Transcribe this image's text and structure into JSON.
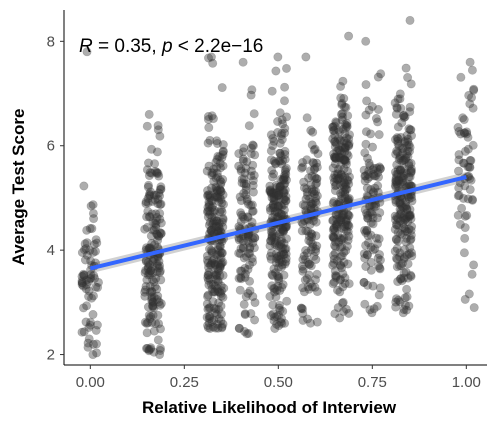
{
  "chart_data": {
    "type": "scatter",
    "title": "",
    "xlabel": "Relative Likelihood of Interview",
    "ylabel": "Average Test Score",
    "xlim": [
      -0.07,
      1.055
    ],
    "ylim": [
      1.8,
      8.6
    ],
    "x_ticks": [
      0.0,
      0.25,
      0.5,
      0.75,
      1.0
    ],
    "x_tick_labels": [
      "0.00",
      "0.25",
      "0.50",
      "0.75",
      "1.00"
    ],
    "y_ticks": [
      2,
      4,
      6,
      8
    ],
    "y_tick_labels": [
      "2",
      "4",
      "6",
      "8"
    ],
    "grid": false,
    "legend": "none",
    "annotation": {
      "R": "R",
      "r_value": " = 0.35, ",
      "p": "p",
      "p_value": " < 2.2e−16"
    },
    "point_color": "#333333",
    "point_opacity": 0.4,
    "regression": {
      "color": "#3366FF",
      "ribbon_color": "#999999",
      "x": [
        0.0,
        1.0
      ],
      "y": [
        3.65,
        5.4
      ]
    },
    "columns": [
      {
        "x": 0.0,
        "n": 70,
        "y_min": 2.0,
        "y_max": 7.8,
        "y_center": 3.7,
        "y_spread": 1.05
      },
      {
        "x": 0.167,
        "n": 170,
        "y_min": 2.0,
        "y_max": 6.6,
        "y_center": 3.9,
        "y_spread": 1.05
      },
      {
        "x": 0.333,
        "n": 230,
        "y_min": 2.5,
        "y_max": 7.7,
        "y_center": 4.2,
        "y_spread": 1.05
      },
      {
        "x": 0.417,
        "n": 120,
        "y_min": 2.4,
        "y_max": 7.6,
        "y_center": 4.4,
        "y_spread": 1.05
      },
      {
        "x": 0.5,
        "n": 230,
        "y_min": 2.5,
        "y_max": 7.7,
        "y_center": 4.5,
        "y_spread": 1.05
      },
      {
        "x": 0.583,
        "n": 120,
        "y_min": 2.6,
        "y_max": 7.7,
        "y_center": 4.6,
        "y_spread": 1.05
      },
      {
        "x": 0.667,
        "n": 230,
        "y_min": 2.7,
        "y_max": 8.1,
        "y_center": 4.9,
        "y_spread": 1.05
      },
      {
        "x": 0.75,
        "n": 110,
        "y_min": 2.8,
        "y_max": 8.0,
        "y_center": 5.0,
        "y_spread": 1.05
      },
      {
        "x": 0.833,
        "n": 220,
        "y_min": 2.8,
        "y_max": 8.4,
        "y_center": 5.1,
        "y_spread": 1.0
      },
      {
        "x": 1.0,
        "n": 60,
        "y_min": 2.9,
        "y_max": 7.6,
        "y_center": 5.3,
        "y_spread": 1.1
      }
    ]
  }
}
